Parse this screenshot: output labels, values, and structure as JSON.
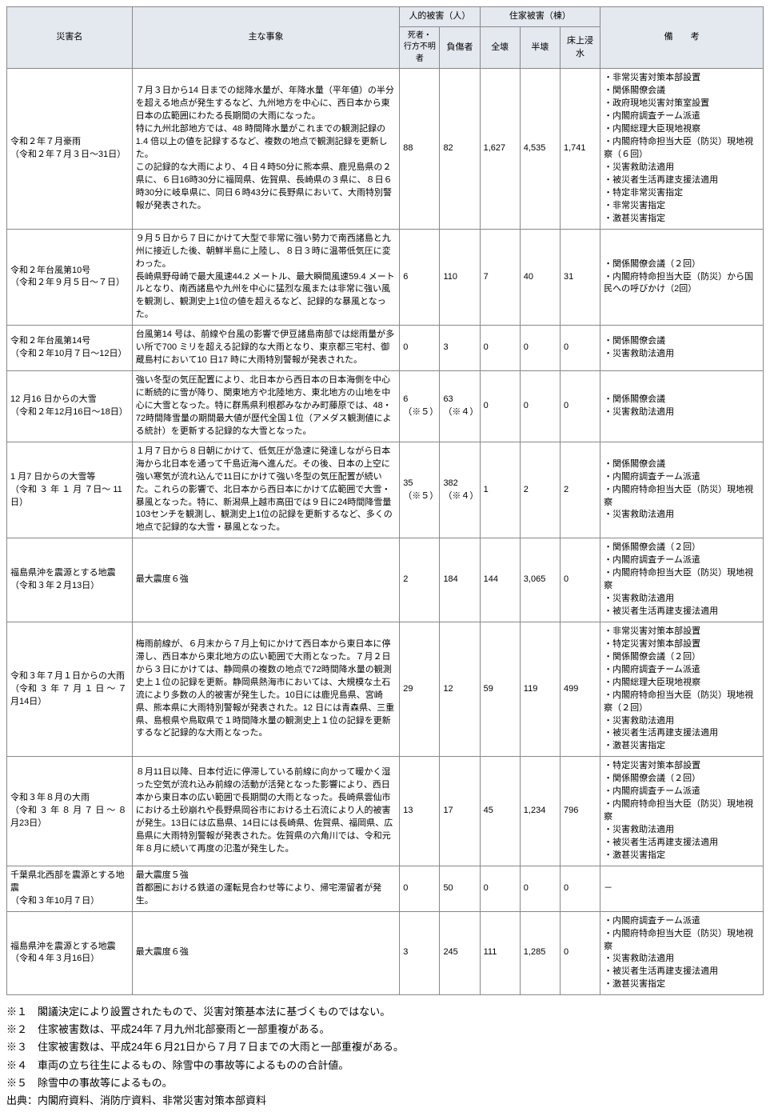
{
  "header": {
    "name": "災害名",
    "event": "主な事象",
    "human_group": "人的被害（人）",
    "house_group": "住家被害（棟）",
    "dead": "死者・\n行方不明者",
    "injured": "負傷者",
    "zenkai": "全壊",
    "hankai": "半壊",
    "flood": "床上浸水",
    "note": "備　　考"
  },
  "rows": [
    {
      "name": "令和２年７月豪雨\n（令和２年７月３日～31日）",
      "event": "７月３日から14 日までの総降水量が、年降水量（平年値）の半分を超える地点が発生するなど、九州地方を中心に、西日本から東日本の広範囲にわたる長期間の大雨になった。\n特に九州北部地方では、48 時間降水量がこれまでの観測記録の1.4 倍以上の値を記録するなど、複数の地点で観測記録を更新した。\nこの記録的な大雨により、４日４時50分に熊本県、鹿児島県の２県に、６日16時30分に福岡県、佐賀県、長崎県の３県に、８日６時30分に岐阜県に、同日６時43分に長野県において、大雨特別警報が発表された。",
      "dead": "88",
      "injured": "82",
      "zenkai": "1,627",
      "hankai": "4,535",
      "flood": "1,741",
      "notes": "・非常災害対策本部設置\n・関係閣僚会議\n・政府現地災害対策室設置\n・内閣府調査チーム派遣\n・内閣総理大臣現地視察\n・内閣府特命担当大臣（防災）現地視察（６回）\n・災害救助法適用\n・被災者生活再建支援法適用\n・特定非常災害指定\n・非常災害指定\n・激甚災害指定"
    },
    {
      "name": "令和２年台風第10号\n（令和２年９月５日～７日）",
      "event": "９月５日から７日にかけて大型で非常に強い勢力で南西諸島と九州に接近した後、朝鮮半島に上陸し、８日３時に温帯低気圧に変わった。\n長崎県野母崎で最大風速44.2 メートル、最大瞬間風速59.4 メートルとなり、南西諸島や九州を中心に猛烈な風または非常に強い風を観測し、観測史上1位の値を超えるなど、記録的な暴風となった。",
      "dead": "6",
      "injured": "110",
      "zenkai": "7",
      "hankai": "40",
      "flood": "31",
      "notes": "・関係閣僚会議（２回）\n・内閣府特命担当大臣（防災）から国民への呼びかけ（2回）"
    },
    {
      "name": "令和２年台風第14号\n（令和２年10月７日～12日）",
      "event": "台風第14 号は、前線や台風の影響で伊豆諸島南部では総雨量が多い所で700 ミリを超える記録的な大雨となり、東京都三宅村、御蔵島村において10 日17 時に大雨特別警報が発表された。",
      "dead": "0",
      "injured": "3",
      "zenkai": "0",
      "hankai": "0",
      "flood": "0",
      "notes": "・関係閣僚会議\n・災害救助法適用"
    },
    {
      "name": "12 月16 日からの大雪\n（令和２年12月16日～18日）",
      "event": "強い冬型の気圧配置により、北日本から西日本の日本海側を中心に断続的に雪が降り、関東地方や北陸地方、東北地方の山地を中心に大雪となった。特に群馬県利根郡みなかみ町藤原では、48・72時間降雪量の期間最大値が歴代全国１位（アメダス観測値による統計）を更新する記録的な大雪となった。",
      "dead": "6\n（※５）",
      "injured": "63\n（※４）",
      "zenkai": "0",
      "hankai": "0",
      "flood": "0",
      "notes": "・関係閣僚会議\n・災害救助法適用"
    },
    {
      "name": "1 月7 日からの大雪等\n（令和 ３ 年 １ 月 ７日～ 11日）",
      "event": "１月７日から８日朝にかけて、低気圧が急速に発達しながら日本海から北日本を通って千島近海へ進んだ。その後、日本の上空に強い寒気が流れ込んで11日にかけて強い冬型の気圧配置が続いた。これらの影響で、北日本から西日本にかけて広範囲で大雪・暴風となった。特に、新潟県上越市高田では９日に24時間降雪量103センチを観測し、観測史上1位の記録を更新するなど、多くの地点で記録的な大雪・暴風となった。",
      "dead": "35\n（※５）",
      "injured": "382\n（※４）",
      "zenkai": "1",
      "hankai": "2",
      "flood": "2",
      "notes": "・関係閣僚会議\n・内閣府調査チーム派遣\n・内閣府特命担当大臣（防災）現地視察\n・災害救助法適用"
    },
    {
      "name": "福島県沖を震源とする地震\n（令和３年２月13日）",
      "event": "最大震度６強",
      "dead": "2",
      "injured": "184",
      "zenkai": "144",
      "hankai": "3,065",
      "flood": "0",
      "notes": "・関係閣僚会議（２回）\n・内閣府調査チーム派遣\n・内閣府特命担当大臣（防災）現地視察\n・災害救助法適用\n・被災者生活再建支援法適用"
    },
    {
      "name": "令和３年７月１日からの大雨\n（令和 ３ 年 ７ 月 １ 日 ～ ７ 月14日）",
      "event": "梅雨前線が、６月末から７月上旬にかけて西日本から東日本に停滞し、西日本から東北地方の広い範囲で大雨となった。７月２日から３日にかけては、静岡県の複数の地点で72時間降水量の観測史上１位の記録を更新。静岡県熱海市においては、大規模な土石流により多数の人的被害が発生した。10日には鹿児島県、宮崎県、熊本県に大雨特別警報が発表された。12 日には青森県、三重県、島根県や鳥取県で１時間降水量の観測史上１位の記録を更新するなど記録的な大雨となった。",
      "dead": "29",
      "injured": "12",
      "zenkai": "59",
      "hankai": "119",
      "flood": "499",
      "notes": "・非常災害対策本部設置\n・特定災害対策本部設置\n・関係閣僚会議（２回）\n・内閣府調査チーム派遣\n・内閣総理大臣現地視察\n・内閣府特命担当大臣（防災）現地視察（２回）\n・災害救助法適用\n・被災者生活再建支援法適用\n・激甚災害指定"
    },
    {
      "name": "令和３年８月の大雨\n（令和 ３ 年 ８ 月 ７ 日 ～ ８ 月23日）",
      "event": "８月11日以降、日本付近に停滞している前線に向かって暖かく湿った空気が流れ込み前線の活動が活発となった影響により、西日本から東日本の広い範囲で長期間の大雨となった。長崎県雲仙市における土砂崩れや長野県岡谷市における土石流により人的被害が発生。13日には広島県、14日には長崎県、佐賀県、福岡県、広島県に大雨特別警報が発表された。佐賀県の六角川では、令和元年８月に続いて再度の氾濫が発生した。",
      "dead": "13",
      "injured": "17",
      "zenkai": "45",
      "hankai": "1,234",
      "flood": "796",
      "notes": "・特定災害対策本部設置\n・関係閣僚会議（２回）\n・内閣府調査チーム派遣\n・内閣府特命担当大臣（防災）現地視察\n・災害救助法適用\n・被災者生活再建支援法適用\n・激甚災害指定"
    },
    {
      "name": "千葉県北西部を震源とする地震\n（令和３年10月７日）",
      "event": "最大震度５強\n首都圏における鉄道の運転見合わせ等により、帰宅滞留者が発生。",
      "dead": "0",
      "injured": "50",
      "zenkai": "0",
      "hankai": "0",
      "flood": "0",
      "notes": "－"
    },
    {
      "name": "福島県沖を震源とする地震\n（令和４年３月16日）",
      "event": "最大震度６強",
      "dead": "3",
      "injured": "245",
      "zenkai": "111",
      "hankai": "1,285",
      "flood": "0",
      "notes": "・内閣府調査チーム派遣\n・内閣府特命担当大臣（防災）現地視察\n・災害救助法適用\n・被災者生活再建支援法適用\n・激甚災害指定"
    }
  ],
  "footnotes": [
    "※１　閣議決定により設置されたもので、災害対策基本法に基づくものではない。",
    "※２　住家被害数は、平成24年７月九州北部豪雨と一部重複がある。",
    "※３　住家被害数は、平成24年６月21日から７月７日までの大雨と一部重複がある。",
    "※４　車両の立ち往生によるもの、除雪中の事故等によるものの合計値。",
    "※５　除雪中の事故等によるもの。",
    "出典：内閣府資料、消防庁資料、非常災害対策本部資料"
  ]
}
